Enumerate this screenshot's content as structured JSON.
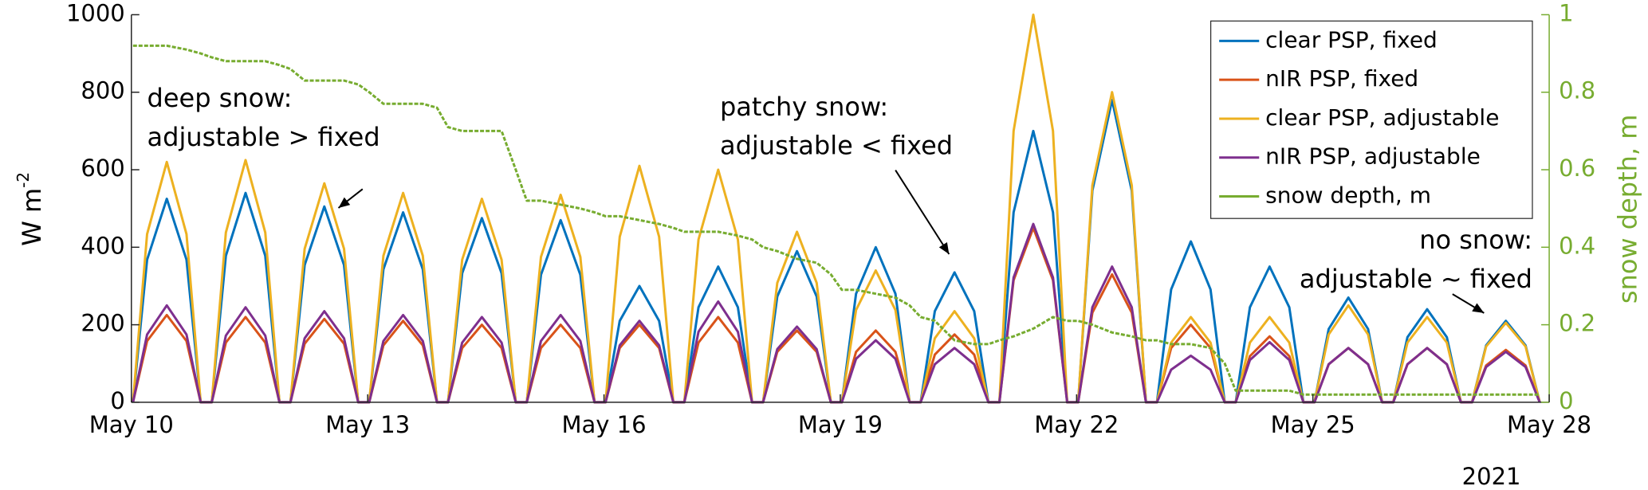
{
  "chart_data": {
    "type": "line",
    "ylabel": {
      "text": "W m",
      "sup": "-2"
    },
    "y2label": "snow depth, m",
    "x": [
      0.02,
      0.2,
      0.45,
      0.7,
      0.88,
      1.02,
      1.2,
      1.45,
      1.7,
      1.88,
      2.02,
      2.2,
      2.45,
      2.7,
      2.88,
      3.02,
      3.2,
      3.45,
      3.7,
      3.88,
      4.02,
      4.2,
      4.45,
      4.7,
      4.88,
      5.02,
      5.2,
      5.45,
      5.7,
      5.88,
      6.02,
      6.2,
      6.45,
      6.7,
      6.88,
      7.02,
      7.2,
      7.45,
      7.7,
      7.88,
      8.02,
      8.2,
      8.45,
      8.7,
      8.88,
      9.02,
      9.2,
      9.45,
      9.7,
      9.88,
      10.02,
      10.2,
      10.45,
      10.7,
      10.88,
      11.02,
      11.2,
      11.45,
      11.7,
      11.88,
      12.02,
      12.2,
      12.45,
      12.7,
      12.88,
      13.02,
      13.2,
      13.45,
      13.7,
      13.88,
      14.02,
      14.2,
      14.45,
      14.7,
      14.88,
      15.02,
      15.2,
      15.45,
      15.7,
      15.88,
      16.02,
      16.2,
      16.45,
      16.7,
      16.88,
      17.02,
      17.2,
      17.45,
      17.7,
      17.88
    ],
    "xlim": [
      0,
      18
    ],
    "xticks": [
      {
        "value": 0,
        "label": "May 10"
      },
      {
        "value": 3,
        "label": "May 13"
      },
      {
        "value": 6,
        "label": "May 16"
      },
      {
        "value": 9,
        "label": "May 19"
      },
      {
        "value": 12,
        "label": "May 22"
      },
      {
        "value": 15,
        "label": "May 25"
      },
      {
        "value": 18,
        "label": "May 28"
      }
    ],
    "xlabel_year": "2021",
    "ylim": [
      0,
      1000
    ],
    "yticks": [
      0,
      200,
      400,
      600,
      800,
      1000
    ],
    "y2lim": [
      0,
      1
    ],
    "y2ticks": [
      0,
      0.2,
      0.4,
      0.6,
      0.8,
      1
    ],
    "y2color": "#77ac30",
    "legend": "upper right",
    "series": [
      {
        "name": "clear PSP, fixed",
        "color": "#0072bd",
        "values": [
          0,
          368,
          525,
          368,
          0,
          0,
          378,
          540,
          378,
          0,
          0,
          354,
          505,
          354,
          0,
          0,
          343,
          490,
          343,
          0,
          0,
          333,
          475,
          333,
          0,
          0,
          329,
          470,
          329,
          0,
          0,
          210,
          300,
          210,
          0,
          0,
          245,
          350,
          245,
          0,
          0,
          273,
          390,
          273,
          0,
          0,
          280,
          400,
          280,
          0,
          0,
          235,
          335,
          235,
          0,
          0,
          490,
          700,
          490,
          0,
          0,
          546,
          780,
          546,
          0,
          0,
          291,
          415,
          291,
          0,
          0,
          245,
          350,
          245,
          0,
          0,
          189,
          270,
          189,
          0,
          0,
          168,
          240,
          168,
          0,
          0,
          147,
          210,
          147,
          0
        ]
      },
      {
        "name": "nIR PSP, fixed",
        "color": "#d95319",
        "values": [
          0,
          158,
          225,
          158,
          0,
          0,
          154,
          220,
          154,
          0,
          0,
          151,
          215,
          151,
          0,
          0,
          147,
          210,
          147,
          0,
          0,
          140,
          200,
          140,
          0,
          0,
          140,
          200,
          140,
          0,
          0,
          140,
          200,
          140,
          0,
          0,
          154,
          220,
          154,
          0,
          0,
          130,
          185,
          130,
          0,
          0,
          130,
          185,
          130,
          0,
          0,
          123,
          175,
          123,
          0,
          0,
          315,
          450,
          315,
          0,
          0,
          231,
          330,
          231,
          0,
          0,
          140,
          200,
          140,
          0,
          0,
          119,
          170,
          119,
          0,
          0,
          98,
          140,
          98,
          0,
          0,
          98,
          140,
          98,
          0,
          0,
          95,
          135,
          95,
          0
        ]
      },
      {
        "name": "clear PSP, adjustable",
        "color": "#edb120",
        "values": [
          0,
          434,
          620,
          434,
          0,
          0,
          438,
          625,
          438,
          0,
          0,
          396,
          565,
          396,
          0,
          0,
          378,
          540,
          378,
          0,
          0,
          368,
          525,
          368,
          0,
          0,
          375,
          535,
          375,
          0,
          0,
          427,
          610,
          427,
          0,
          0,
          420,
          600,
          420,
          0,
          0,
          308,
          440,
          308,
          0,
          0,
          238,
          340,
          238,
          0,
          0,
          165,
          235,
          165,
          0,
          0,
          700,
          1000,
          700,
          0,
          0,
          560,
          800,
          560,
          0,
          0,
          154,
          220,
          154,
          0,
          0,
          154,
          220,
          154,
          0,
          0,
          175,
          250,
          175,
          0,
          0,
          154,
          220,
          154,
          0,
          0,
          144,
          205,
          144,
          0
        ]
      },
      {
        "name": "nIR PSP, adjustable",
        "color": "#7e2f8e",
        "values": [
          0,
          175,
          250,
          175,
          0,
          0,
          172,
          245,
          172,
          0,
          0,
          165,
          235,
          165,
          0,
          0,
          158,
          225,
          158,
          0,
          0,
          154,
          220,
          154,
          0,
          0,
          158,
          225,
          158,
          0,
          0,
          147,
          210,
          147,
          0,
          0,
          182,
          260,
          182,
          0,
          0,
          137,
          195,
          137,
          0,
          0,
          112,
          160,
          112,
          0,
          0,
          98,
          140,
          98,
          0,
          0,
          322,
          460,
          322,
          0,
          0,
          245,
          350,
          245,
          0,
          0,
          84,
          120,
          84,
          0,
          0,
          109,
          155,
          109,
          0,
          0,
          98,
          140,
          98,
          0,
          0,
          98,
          140,
          98,
          0,
          0,
          91,
          130,
          91,
          0
        ]
      },
      {
        "name": "snow depth, m",
        "color": "#77ac30",
        "axis": "y2",
        "values": [
          0.92,
          0.92,
          0.92,
          0.91,
          0.9,
          0.89,
          0.88,
          0.88,
          0.88,
          0.87,
          0.86,
          0.83,
          0.83,
          0.83,
          0.82,
          0.8,
          0.77,
          0.77,
          0.77,
          0.76,
          0.71,
          0.7,
          0.7,
          0.7,
          0.6,
          0.52,
          0.52,
          0.51,
          0.5,
          0.49,
          0.48,
          0.48,
          0.47,
          0.46,
          0.45,
          0.44,
          0.44,
          0.44,
          0.43,
          0.42,
          0.4,
          0.39,
          0.37,
          0.36,
          0.33,
          0.29,
          0.29,
          0.28,
          0.27,
          0.25,
          0.22,
          0.21,
          0.16,
          0.15,
          0.15,
          0.16,
          0.17,
          0.19,
          0.22,
          0.21,
          0.21,
          0.2,
          0.18,
          0.17,
          0.16,
          0.16,
          0.15,
          0.15,
          0.14,
          0.1,
          0.03,
          0.03,
          0.03,
          0.03,
          0.02,
          0.02,
          0.02,
          0.02,
          0.02,
          0.02,
          0.02,
          0.02,
          0.02,
          0.02,
          0.02,
          0.02,
          0.02,
          0.02,
          0.02,
          0.02
        ]
      }
    ],
    "annotations": [
      {
        "lines": [
          "deep snow:",
          "adjustable > fixed"
        ]
      },
      {
        "lines": [
          "patchy snow:",
          "adjustable < fixed"
        ]
      },
      {
        "lines": [
          "no snow:",
          "adjustable ~ fixed"
        ]
      }
    ]
  }
}
